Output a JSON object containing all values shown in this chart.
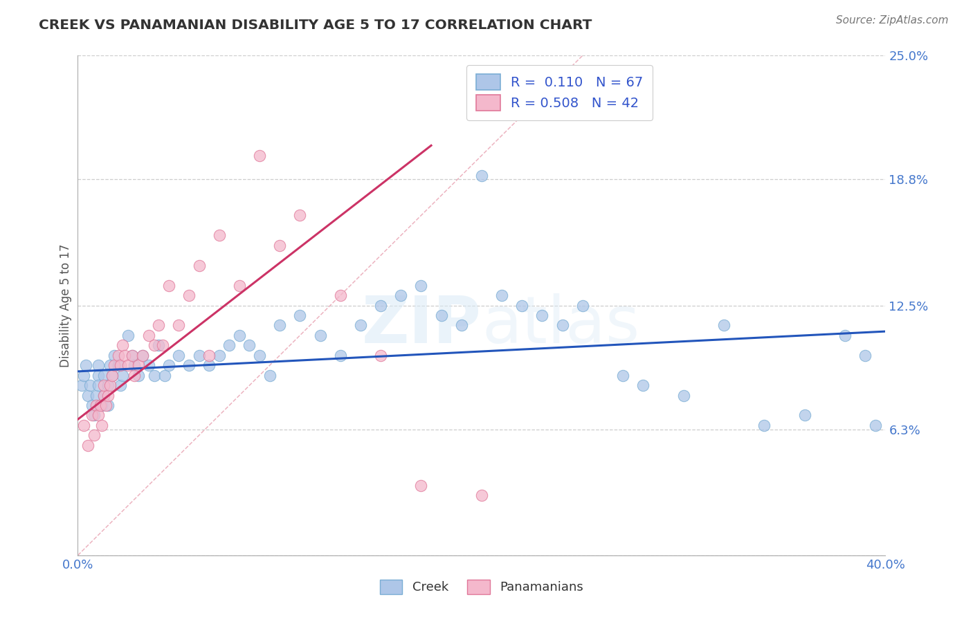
{
  "title": "CREEK VS PANAMANIAN DISABILITY AGE 5 TO 17 CORRELATION CHART",
  "source": "Source: ZipAtlas.com",
  "ylabel_label": "Disability Age 5 to 17",
  "xlim": [
    0.0,
    0.4
  ],
  "ylim": [
    0.0,
    0.25
  ],
  "ytick_positions": [
    0.0,
    0.063,
    0.125,
    0.188,
    0.25
  ],
  "yticklabels": [
    "",
    "6.3%",
    "12.5%",
    "18.8%",
    "25.0%"
  ],
  "grid_color": "#c8c8c8",
  "background_color": "#ffffff",
  "creek_color": "#aec6e8",
  "creek_edge_color": "#7aadd4",
  "panama_color": "#f4b8cc",
  "panama_edge_color": "#e07899",
  "creek_R": 0.11,
  "creek_N": 67,
  "panama_R": 0.508,
  "panama_N": 42,
  "creek_line_color": "#2255bb",
  "panama_line_color": "#cc3366",
  "diagonal_color": "#e8a0b0",
  "legend_text_color": "#3355cc",
  "creek_line_x": [
    0.0,
    0.4
  ],
  "creek_line_y": [
    0.092,
    0.112
  ],
  "panama_line_x": [
    0.0,
    0.175
  ],
  "panama_line_y": [
    0.068,
    0.205
  ],
  "creek_x": [
    0.002,
    0.003,
    0.004,
    0.005,
    0.006,
    0.007,
    0.008,
    0.009,
    0.01,
    0.01,
    0.01,
    0.012,
    0.013,
    0.013,
    0.015,
    0.015,
    0.016,
    0.017,
    0.018,
    0.02,
    0.021,
    0.022,
    0.025,
    0.027,
    0.028,
    0.03,
    0.032,
    0.035,
    0.038,
    0.04,
    0.043,
    0.045,
    0.05,
    0.055,
    0.06,
    0.065,
    0.07,
    0.075,
    0.08,
    0.085,
    0.09,
    0.095,
    0.1,
    0.11,
    0.12,
    0.13,
    0.14,
    0.15,
    0.16,
    0.17,
    0.18,
    0.19,
    0.2,
    0.21,
    0.22,
    0.23,
    0.24,
    0.25,
    0.27,
    0.28,
    0.3,
    0.32,
    0.34,
    0.36,
    0.38,
    0.39,
    0.395
  ],
  "creek_y": [
    0.085,
    0.09,
    0.095,
    0.08,
    0.085,
    0.075,
    0.07,
    0.08,
    0.09,
    0.095,
    0.085,
    0.075,
    0.08,
    0.09,
    0.085,
    0.075,
    0.095,
    0.09,
    0.1,
    0.095,
    0.085,
    0.09,
    0.11,
    0.1,
    0.095,
    0.09,
    0.1,
    0.095,
    0.09,
    0.105,
    0.09,
    0.095,
    0.1,
    0.095,
    0.1,
    0.095,
    0.1,
    0.105,
    0.11,
    0.105,
    0.1,
    0.09,
    0.115,
    0.12,
    0.11,
    0.1,
    0.115,
    0.125,
    0.13,
    0.135,
    0.12,
    0.115,
    0.19,
    0.13,
    0.125,
    0.12,
    0.115,
    0.125,
    0.09,
    0.085,
    0.08,
    0.115,
    0.065,
    0.07,
    0.11,
    0.1,
    0.065
  ],
  "panama_x": [
    0.003,
    0.005,
    0.007,
    0.008,
    0.009,
    0.01,
    0.011,
    0.012,
    0.013,
    0.013,
    0.014,
    0.015,
    0.016,
    0.017,
    0.018,
    0.02,
    0.021,
    0.022,
    0.023,
    0.025,
    0.027,
    0.028,
    0.03,
    0.032,
    0.035,
    0.038,
    0.04,
    0.042,
    0.045,
    0.05,
    0.055,
    0.06,
    0.065,
    0.07,
    0.08,
    0.09,
    0.1,
    0.11,
    0.13,
    0.15,
    0.17,
    0.2
  ],
  "panama_y": [
    0.065,
    0.055,
    0.07,
    0.06,
    0.075,
    0.07,
    0.075,
    0.065,
    0.08,
    0.085,
    0.075,
    0.08,
    0.085,
    0.09,
    0.095,
    0.1,
    0.095,
    0.105,
    0.1,
    0.095,
    0.1,
    0.09,
    0.095,
    0.1,
    0.11,
    0.105,
    0.115,
    0.105,
    0.135,
    0.115,
    0.13,
    0.145,
    0.1,
    0.16,
    0.135,
    0.2,
    0.155,
    0.17,
    0.13,
    0.1,
    0.035,
    0.03
  ]
}
